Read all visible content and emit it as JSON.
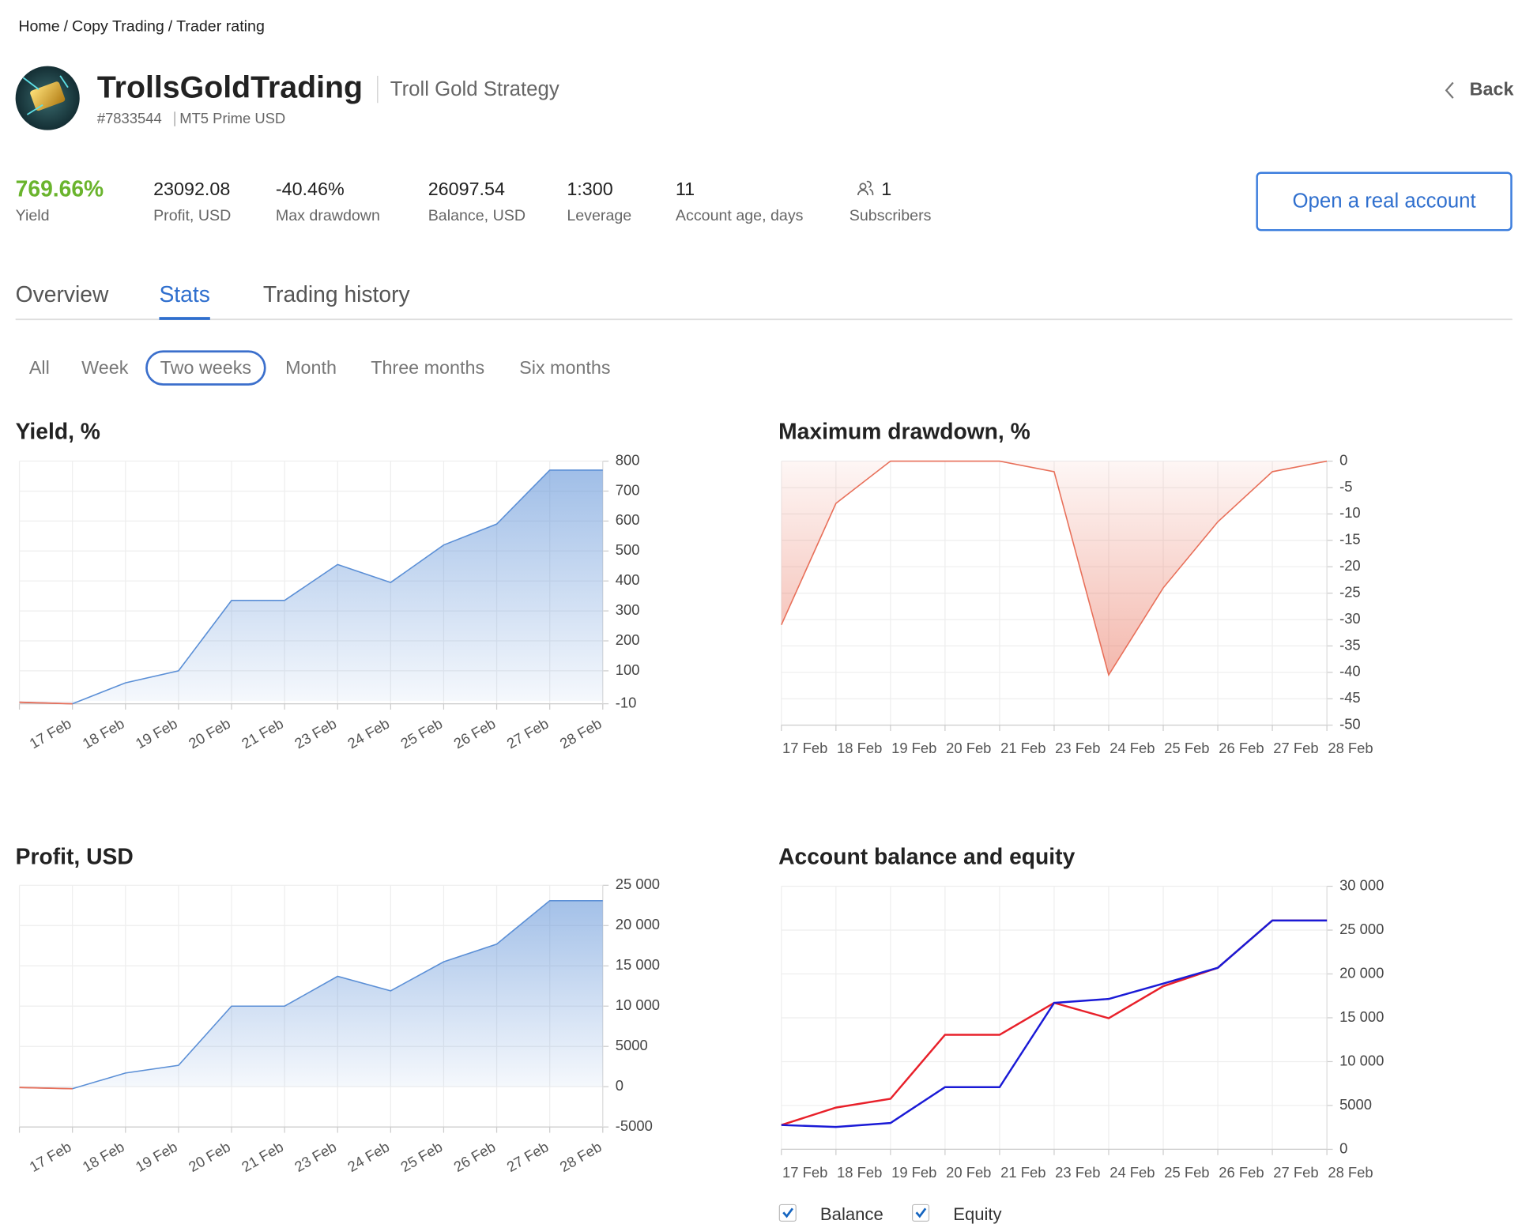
{
  "breadcrumb": {
    "items": [
      "Home",
      "Copy Trading",
      "Trader rating"
    ],
    "separator": "/"
  },
  "profile": {
    "name": "TrollsGoldTrading",
    "strategy": "Troll Gold Strategy",
    "account_id": "#7833544",
    "server": "MT5 Prime USD",
    "back": "Back"
  },
  "stats": [
    {
      "value": "769.66%",
      "label": "Yield"
    },
    {
      "value": "23092.08",
      "label": "Profit, USD"
    },
    {
      "value": "-40.46%",
      "label": "Max drawdown"
    },
    {
      "value": "26097.54",
      "label": "Balance, USD"
    },
    {
      "value": "1:300",
      "label": "Leverage"
    },
    {
      "value": "11",
      "label": "Account age, days"
    },
    {
      "value": "1",
      "label": "Subscribers"
    }
  ],
  "button": "Open a real account",
  "tabs": [
    "Overview",
    "Stats",
    "Trading history"
  ],
  "active_tab": 1,
  "periods": [
    "All",
    "Week",
    "Two weeks",
    "Month",
    "Three months",
    "Six months"
  ],
  "active_period": 2,
  "chart_data": [
    {
      "type": "area",
      "title": "Yield, %",
      "categories": [
        null,
        "17 Feb",
        "18 Feb",
        "19 Feb",
        "20 Feb",
        "21 Feb",
        "23 Feb",
        "24 Feb",
        "25 Feb",
        "26 Feb",
        "27 Feb",
        "28 Feb"
      ],
      "values": [
        -5,
        -10,
        60,
        100,
        335,
        335,
        455,
        395,
        520,
        590,
        770,
        770
      ],
      "color": "#5b8fd6",
      "negative_color": "#e8705a",
      "ylim": [
        -10,
        800
      ],
      "yticks": [
        800,
        700,
        600,
        500,
        400,
        300,
        200,
        100,
        -10
      ],
      "grid": true
    },
    {
      "type": "area",
      "title": "Maximum drawdown, %",
      "categories": [
        "17 Feb",
        "18 Feb",
        "19 Feb",
        "20 Feb",
        "21 Feb",
        "23 Feb",
        "24 Feb",
        "25 Feb",
        "26 Feb",
        "27 Feb",
        "28 Feb"
      ],
      "values": [
        -31,
        -8,
        0,
        0,
        0,
        -2,
        -40.5,
        -24,
        -11.5,
        -2,
        0
      ],
      "color": "#e8705a",
      "ylim": [
        -50,
        0
      ],
      "yticks": [
        0,
        -5,
        -10,
        -15,
        -20,
        -25,
        -30,
        -35,
        -40,
        -45,
        -50
      ],
      "grid": true
    },
    {
      "type": "area",
      "title": "Profit, USD",
      "categories": [
        null,
        "17 Feb",
        "18 Feb",
        "19 Feb",
        "20 Feb",
        "21 Feb",
        "23 Feb",
        "24 Feb",
        "25 Feb",
        "26 Feb",
        "27 Feb",
        "28 Feb"
      ],
      "values": [
        -100,
        -250,
        1700,
        2650,
        10000,
        10000,
        13700,
        11900,
        15500,
        17700,
        23092,
        23092
      ],
      "color": "#5b8fd6",
      "negative_color": "#e8705a",
      "ylim": [
        -5000,
        25000
      ],
      "yticks": [
        {
          "value": 25000,
          "label": "25 000"
        },
        {
          "value": 20000,
          "label": "20 000"
        },
        {
          "value": 15000,
          "label": "15 000"
        },
        {
          "value": 10000,
          "label": "10 000"
        },
        5000,
        0,
        -5000
      ],
      "grid": true
    },
    {
      "type": "line",
      "title": "Account balance and equity",
      "categories": [
        "17 Feb",
        "18 Feb",
        "19 Feb",
        "20 Feb",
        "21 Feb",
        "23 Feb",
        "24 Feb",
        "25 Feb",
        "26 Feb",
        "27 Feb",
        "28 Feb"
      ],
      "series": [
        {
          "name": "Balance",
          "color": "#e8202a",
          "values": [
            2770,
            4760,
            5760,
            13060,
            13060,
            16700,
            14950,
            18600,
            20700,
            26100,
            26100
          ]
        },
        {
          "name": "Equity",
          "color": "#1a1ad6",
          "values": [
            2770,
            2550,
            3000,
            7090,
            7090,
            16700,
            17150,
            18900,
            20700,
            26097.54,
            26097.54
          ]
        }
      ],
      "ylim": [
        0,
        30000
      ],
      "yticks": [
        {
          "value": 30000,
          "label": "30 000"
        },
        {
          "value": 25000,
          "label": "25 000"
        },
        {
          "value": 20000,
          "label": "20 000"
        },
        {
          "value": 15000,
          "label": "15 000"
        },
        {
          "value": 10000,
          "label": "10 000"
        },
        5000,
        0
      ],
      "grid": true
    }
  ]
}
